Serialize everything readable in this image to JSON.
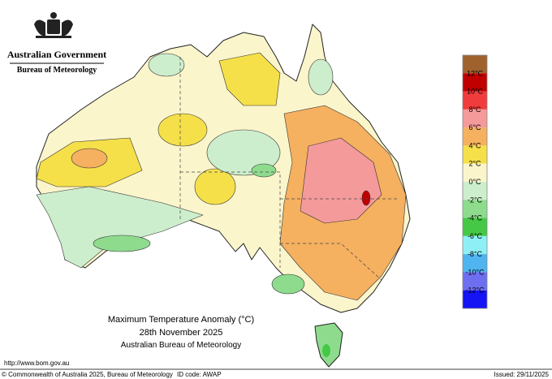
{
  "header": {
    "government": "Australian Government",
    "agency": "Bureau of Meteorology"
  },
  "title": {
    "line1": "Maximum Temperature Anomaly (°C)",
    "line2": "28th November 2025",
    "line3": "Australian Bureau of Meteorology"
  },
  "legend": {
    "colors": [
      "#a0622d",
      "#c00000",
      "#f03c3c",
      "#f59a9a",
      "#f5b060",
      "#f5e04a",
      "#fbf5cc",
      "#cdeecd",
      "#8edb8e",
      "#45c845",
      "#8ef0f5",
      "#50b4f0",
      "#6e6ef0",
      "#1414f5"
    ],
    "labels": [
      "12°C",
      "10°C",
      "8°C",
      "6°C",
      "4°C",
      "2°C",
      "0°C",
      "-2°C",
      "-4°C",
      "-6°C",
      "-8°C",
      "-10°C",
      "-12°C"
    ]
  },
  "footer": {
    "url": "http://www.bom.gov.au",
    "copyright": "© Commonwealth of Australia 2025, Bureau of Meteorology",
    "id_code": "ID code: AWAP",
    "issued": "Issued: 29/11/2025"
  }
}
